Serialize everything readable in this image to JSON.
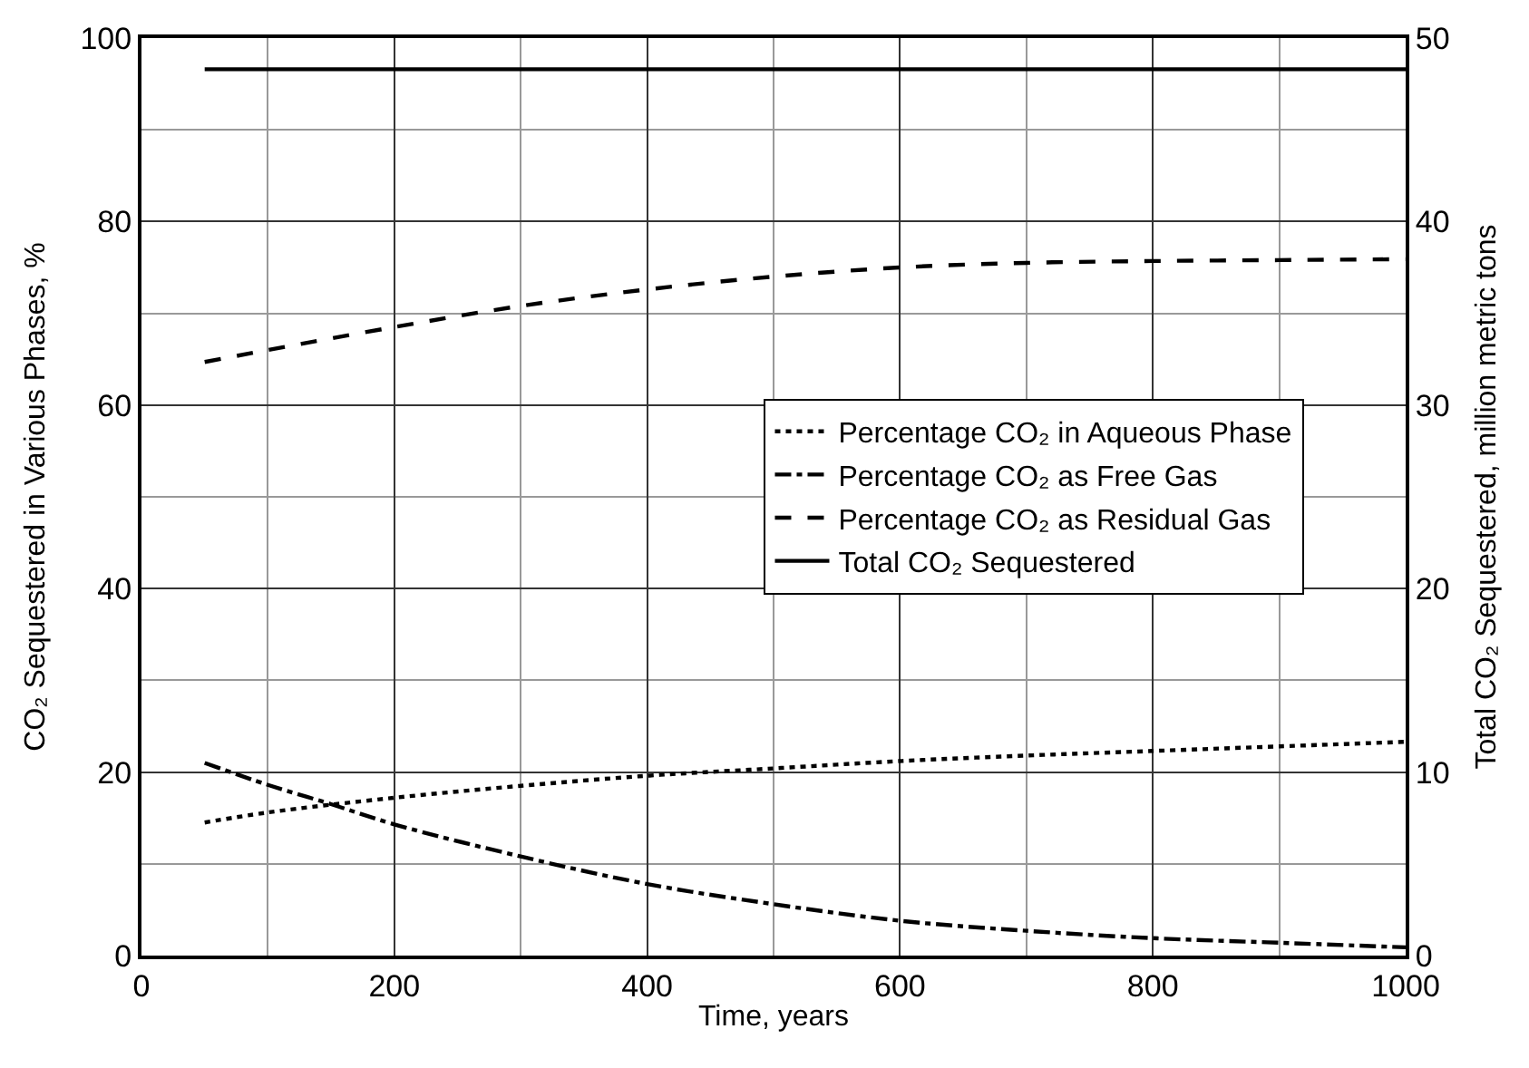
{
  "chart_data": {
    "type": "line",
    "xlabel": "Time, years",
    "ylabel": "CO₂ Sequestered in Various Phases, %",
    "y2label": "Total CO₂ Sequestered, million metric tons",
    "series": [
      {
        "name": "Percentage CO₂ in Aqueous Phase",
        "color": "#000000",
        "line_style": "dotted",
        "x": [
          50,
          100,
          200,
          300,
          400,
          500,
          600,
          700,
          800,
          900,
          1000
        ],
        "values": [
          14.5,
          15.6,
          17.2,
          18.5,
          19.6,
          20.4,
          21.2,
          21.8,
          22.3,
          22.8,
          23.3
        ]
      },
      {
        "name": "Percentage CO₂ as Free Gas",
        "color": "#000000",
        "line_style": "dashdot",
        "x": [
          50,
          100,
          150,
          200,
          300,
          400,
          500,
          600,
          700,
          800,
          900,
          1000
        ],
        "values": [
          21,
          18.6,
          16.5,
          14.3,
          10.8,
          7.8,
          5.6,
          3.8,
          2.7,
          1.9,
          1.4,
          0.9
        ]
      },
      {
        "name": "Percentage CO₂ as Residual Gas",
        "color": "#000000",
        "line_style": "dashed",
        "x": [
          50,
          100,
          200,
          300,
          400,
          500,
          600,
          700,
          800,
          900,
          1000
        ],
        "values": [
          64.7,
          66,
          68.5,
          70.8,
          72.6,
          74,
          75,
          75.5,
          75.7,
          75.8,
          75.9
        ]
      },
      {
        "name": "Total CO₂ Sequestered",
        "color": "#000000",
        "line_style": "solid",
        "axis": "y2",
        "x": [
          50,
          1000
        ],
        "values": [
          48.3,
          48.3
        ]
      }
    ],
    "xlim": [
      0,
      1000
    ],
    "xticks": [
      0,
      200,
      400,
      600,
      800,
      1000
    ],
    "ylim": [
      0,
      100
    ],
    "yticks": [
      0,
      20,
      40,
      60,
      80,
      100
    ],
    "y2lim": [
      0,
      50
    ],
    "y2ticks": [
      0,
      10,
      20,
      30,
      40,
      50
    ],
    "grid": true,
    "legend": "center right",
    "marker": "none"
  }
}
